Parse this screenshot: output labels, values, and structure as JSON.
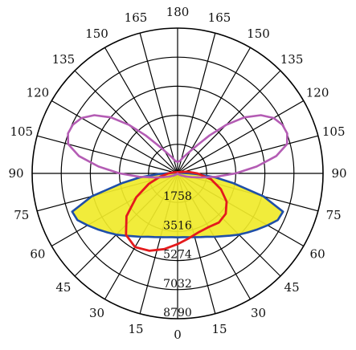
{
  "chart_data": {
    "type": "polar",
    "title": "",
    "angle_labels": {
      "left": [
        "0",
        "15",
        "30",
        "45",
        "60",
        "75",
        "90",
        "105",
        "120",
        "135",
        "150",
        "165",
        "180"
      ],
      "right": [
        "0",
        "15",
        "30",
        "45",
        "60",
        "75",
        "90",
        "105",
        "120",
        "135",
        "150",
        "165",
        "180"
      ]
    },
    "radial_ticks": [
      "1758",
      "3516",
      "5274",
      "7032",
      "8790"
    ],
    "radial_values": [
      1758,
      3516,
      5274,
      7032,
      8790
    ],
    "r_max": 8790,
    "grid": true,
    "colors": {
      "grid": "#000000",
      "fill": "#f0ea2a",
      "blue": "#1f4fa8",
      "red": "#e41a1c",
      "magenta": "#b45cb4"
    },
    "series": [
      {
        "style": "filled",
        "color": "#1f4fa8",
        "fill": "#f0ea2a",
        "angles": [
          0,
          5,
          10,
          15,
          20,
          25,
          30,
          35,
          40,
          45,
          50,
          55,
          60,
          65,
          70,
          75,
          80,
          84,
          88,
          90,
          95,
          100,
          105,
          110,
          115
        ],
        "values": [
          3870,
          3870,
          3920,
          3990,
          4100,
          4230,
          4430,
          4640,
          4920,
          5240,
          5550,
          5900,
          6280,
          6680,
          6780,
          5380,
          3430,
          2250,
          1150,
          700,
          320,
          220,
          160,
          150,
          150
        ]
      },
      {
        "style": "line",
        "color": "#e41a1c",
        "angles": [
          -110,
          -100,
          -90,
          -80,
          -70,
          -60,
          -50,
          -40,
          -30,
          -20,
          -10,
          0,
          10,
          20,
          30,
          40,
          50,
          60,
          70,
          80,
          90,
          100,
          110
        ],
        "values": [
          200,
          300,
          550,
          1050,
          1850,
          2880,
          4030,
          4850,
          5150,
          4980,
          4650,
          4280,
          3980,
          3780,
          3750,
          3880,
          3800,
          3420,
          2780,
          2050,
          1200,
          600,
          250
        ]
      },
      {
        "style": "line",
        "color": "#b45cb4",
        "angles": [
          0,
          20,
          40,
          60,
          70,
          75,
          80,
          85,
          90,
          95,
          100,
          105,
          110,
          115,
          120,
          125,
          130,
          135,
          140,
          145,
          150,
          160,
          170,
          180
        ],
        "values": [
          0,
          0,
          60,
          250,
          570,
          880,
          1430,
          2330,
          3500,
          4800,
          6060,
          6850,
          7050,
          6980,
          6700,
          6140,
          5270,
          4150,
          2990,
          2100,
          1580,
          1050,
          760,
          700
        ]
      }
    ]
  }
}
